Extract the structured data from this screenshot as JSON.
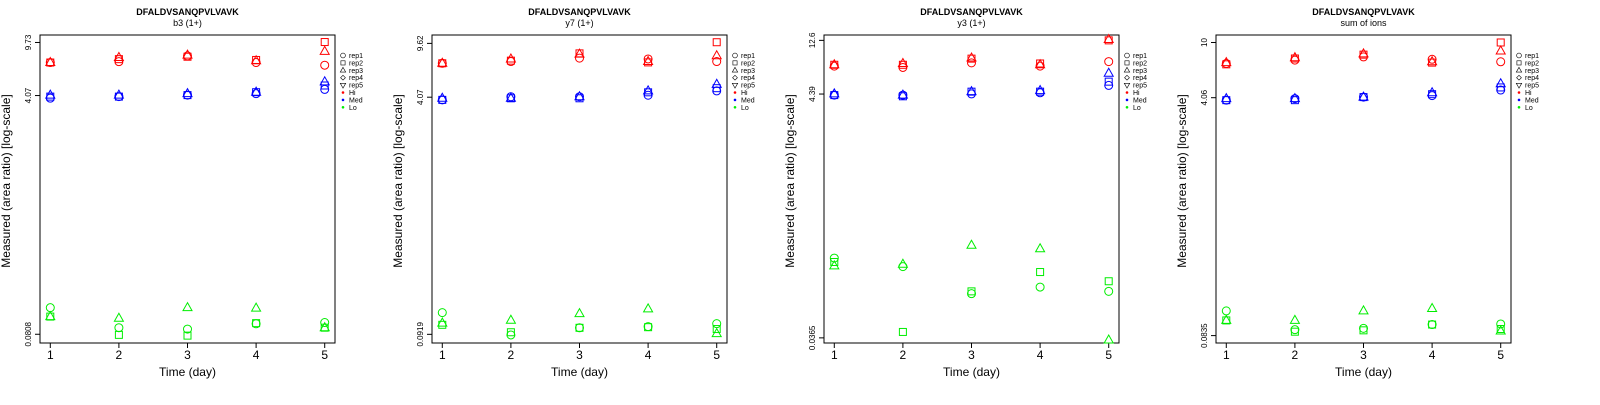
{
  "chart_data": [
    {
      "type": "scatter",
      "title": "DFALDVSANQPVLVAVK",
      "subtitle": "b3 (1+)",
      "xlabel": "Time (day)",
      "ylabel": "Measured (area ratio) [log-scale]",
      "log_y": true,
      "ylim": [
        0.07,
        11.0
      ],
      "xlim": [
        0.85,
        5.15
      ],
      "x_ticks": [
        "1",
        "2",
        "3",
        "4",
        "5"
      ],
      "y_ticks": [
        {
          "value": 0.0808,
          "label": "0.0808"
        },
        {
          "value": 4.07,
          "label": "4.07"
        },
        {
          "value": 9.73,
          "label": "9.73"
        }
      ],
      "legend": {
        "placement": "right",
        "entries": [
          "rep1",
          "rep2",
          "rep3",
          "rep4",
          "rep5",
          "Hi",
          "Med",
          "Lo"
        ]
      },
      "series": [
        {
          "level": "Hi",
          "rep": "rep1",
          "values": [
            7.0,
            7.1,
            7.8,
            7.0,
            6.7
          ]
        },
        {
          "level": "Hi",
          "rep": "rep2",
          "values": [
            7.0,
            7.4,
            7.7,
            7.3,
            9.8
          ]
        },
        {
          "level": "Hi",
          "rep": "rep3",
          "values": [
            7.0,
            7.6,
            7.9,
            7.2,
            8.4
          ]
        },
        {
          "level": "Med",
          "rep": "rep1",
          "values": [
            3.9,
            4.0,
            4.1,
            4.2,
            4.5
          ]
        },
        {
          "level": "Med",
          "rep": "rep2",
          "values": [
            4.0,
            4.0,
            4.1,
            4.3,
            4.8
          ]
        },
        {
          "level": "Med",
          "rep": "rep3",
          "values": [
            4.1,
            4.1,
            4.2,
            4.3,
            5.1
          ]
        },
        {
          "level": "Lo",
          "rep": "rep1",
          "values": [
            0.125,
            0.09,
            0.088,
            0.096,
            0.098
          ]
        },
        {
          "level": "Lo",
          "rep": "rep2",
          "values": [
            0.108,
            0.08,
            0.079,
            0.097,
            0.09
          ]
        },
        {
          "level": "Lo",
          "rep": "rep3",
          "values": [
            0.108,
            0.105,
            0.125,
            0.124,
            0.09
          ]
        }
      ]
    },
    {
      "type": "scatter",
      "title": "DFALDVSANQPVLVAVK",
      "subtitle": "y7 (1+)",
      "xlabel": "Time (day)",
      "ylabel": "Measured (area ratio) [log-scale]",
      "log_y": true,
      "ylim": [
        0.08,
        11.0
      ],
      "xlim": [
        0.85,
        5.15
      ],
      "x_ticks": [
        "1",
        "2",
        "3",
        "4",
        "5"
      ],
      "y_ticks": [
        {
          "value": 0.0919,
          "label": "0.0919"
        },
        {
          "value": 4.07,
          "label": "4.07"
        },
        {
          "value": 9.62,
          "label": "9.62"
        }
      ],
      "legend": {
        "placement": "right",
        "entries": [
          "rep1",
          "rep2",
          "rep3",
          "rep4",
          "rep5",
          "Hi",
          "Med",
          "Lo"
        ]
      },
      "series": [
        {
          "level": "Hi",
          "rep": "rep1",
          "values": [
            7.0,
            7.2,
            7.6,
            7.5,
            7.2
          ]
        },
        {
          "level": "Hi",
          "rep": "rep2",
          "values": [
            7.0,
            7.3,
            8.2,
            7.1,
            9.8
          ]
        },
        {
          "level": "Hi",
          "rep": "rep3",
          "values": [
            7.0,
            7.5,
            8.1,
            7.2,
            7.9
          ]
        },
        {
          "level": "Med",
          "rep": "rep1",
          "values": [
            3.9,
            4.1,
            4.1,
            4.2,
            4.5
          ]
        },
        {
          "level": "Med",
          "rep": "rep2",
          "values": [
            3.9,
            4.0,
            4.0,
            4.4,
            4.7
          ]
        },
        {
          "level": "Med",
          "rep": "rep3",
          "values": [
            4.0,
            4.0,
            4.1,
            4.5,
            5.0
          ]
        },
        {
          "level": "Lo",
          "rep": "rep1",
          "values": [
            0.13,
            0.091,
            0.102,
            0.104,
            0.109
          ]
        },
        {
          "level": "Lo",
          "rep": "rep2",
          "values": [
            0.107,
            0.095,
            0.102,
            0.103,
            0.1
          ]
        },
        {
          "level": "Lo",
          "rep": "rep3",
          "values": [
            0.11,
            0.115,
            0.128,
            0.138,
            0.093
          ]
        }
      ]
    },
    {
      "type": "scatter",
      "title": "DFALDVSANQPVLVAVK",
      "subtitle": "y3 (1+)",
      "xlabel": "Time (day)",
      "ylabel": "Measured (area ratio) [log-scale]",
      "log_y": true,
      "ylim": [
        0.033,
        14.0
      ],
      "xlim": [
        0.85,
        5.15
      ],
      "x_ticks": [
        "1",
        "2",
        "3",
        "4",
        "5"
      ],
      "y_ticks": [
        {
          "value": 0.0365,
          "label": "0.0365"
        },
        {
          "value": 4.39,
          "label": "4.39"
        },
        {
          "value": 12.6,
          "label": "12.6"
        }
      ],
      "legend": {
        "placement": "right",
        "entries": [
          "rep1",
          "rep2",
          "rep3",
          "rep4",
          "rep5",
          "Hi",
          "Med",
          "Lo"
        ]
      },
      "series": [
        {
          "level": "Hi",
          "rep": "rep1",
          "values": [
            7.6,
            7.4,
            8.1,
            7.6,
            8.3
          ]
        },
        {
          "level": "Hi",
          "rep": "rep2",
          "values": [
            7.8,
            7.8,
            8.8,
            8.0,
            12.6
          ]
        },
        {
          "level": "Hi",
          "rep": "rep3",
          "values": [
            7.8,
            8.0,
            8.9,
            7.8,
            12.8
          ]
        },
        {
          "level": "Med",
          "rep": "rep1",
          "values": [
            4.3,
            4.3,
            4.4,
            4.5,
            5.2
          ]
        },
        {
          "level": "Med",
          "rep": "rep2",
          "values": [
            4.3,
            4.2,
            4.6,
            4.6,
            5.6
          ]
        },
        {
          "level": "Med",
          "rep": "rep3",
          "values": [
            4.4,
            4.3,
            4.6,
            4.7,
            6.6
          ]
        },
        {
          "level": "Lo",
          "rep": "rep1",
          "values": [
            0.175,
            0.148,
            0.087,
            0.099,
            0.091
          ]
        },
        {
          "level": "Lo",
          "rep": "rep2",
          "values": [
            0.162,
            0.041,
            0.091,
            0.133,
            0.111
          ]
        },
        {
          "level": "Lo",
          "rep": "rep3",
          "values": [
            0.15,
            0.155,
            0.225,
            0.21,
            0.035
          ]
        }
      ]
    },
    {
      "type": "scatter",
      "title": "DFALDVSANQPVLVAVK",
      "subtitle": "sum of ions",
      "xlabel": "Time (day)",
      "ylabel": "Measured (area ratio) [log-scale]",
      "log_y": true,
      "ylim": [
        0.074,
        11.3
      ],
      "xlim": [
        0.85,
        5.15
      ],
      "x_ticks": [
        "1",
        "2",
        "3",
        "4",
        "5"
      ],
      "y_ticks": [
        {
          "value": 0.0835,
          "label": "0.0835"
        },
        {
          "value": 4.06,
          "label": "4.06"
        },
        {
          "value": 10,
          "label": "10"
        }
      ],
      "legend": {
        "placement": "right",
        "entries": [
          "rep1",
          "rep2",
          "rep3",
          "rep4",
          "rep5",
          "Hi",
          "Med",
          "Lo"
        ]
      },
      "series": [
        {
          "level": "Hi",
          "rep": "rep1",
          "values": [
            7.1,
            7.5,
            7.9,
            7.6,
            7.3
          ]
        },
        {
          "level": "Hi",
          "rep": "rep2",
          "values": [
            7.0,
            7.7,
            8.2,
            7.2,
            10.0
          ]
        },
        {
          "level": "Hi",
          "rep": "rep3",
          "values": [
            7.2,
            7.8,
            8.3,
            7.3,
            8.7
          ]
        },
        {
          "level": "Med",
          "rep": "rep1",
          "values": [
            3.9,
            4.0,
            4.1,
            4.2,
            4.6
          ]
        },
        {
          "level": "Med",
          "rep": "rep2",
          "values": [
            3.9,
            3.9,
            4.1,
            4.3,
            4.8
          ]
        },
        {
          "level": "Med",
          "rep": "rep3",
          "values": [
            4.0,
            4.0,
            4.1,
            4.4,
            5.1
          ]
        },
        {
          "level": "Lo",
          "rep": "rep1",
          "values": [
            0.125,
            0.092,
            0.094,
            0.1,
            0.101
          ]
        },
        {
          "level": "Lo",
          "rep": "rep2",
          "values": [
            0.107,
            0.089,
            0.091,
            0.1,
            0.093
          ]
        },
        {
          "level": "Lo",
          "rep": "rep3",
          "values": [
            0.107,
            0.107,
            0.125,
            0.13,
            0.09
          ]
        }
      ]
    }
  ],
  "colors": {
    "Hi": "#ff0000",
    "Med": "#0000ff",
    "Lo": "#00ee00",
    "axis": "#000000"
  },
  "rep_markers": {
    "rep1": "circle",
    "rep2": "square",
    "rep3": "triangle-up",
    "rep4": "diamond",
    "rep5": "triangle-down"
  }
}
